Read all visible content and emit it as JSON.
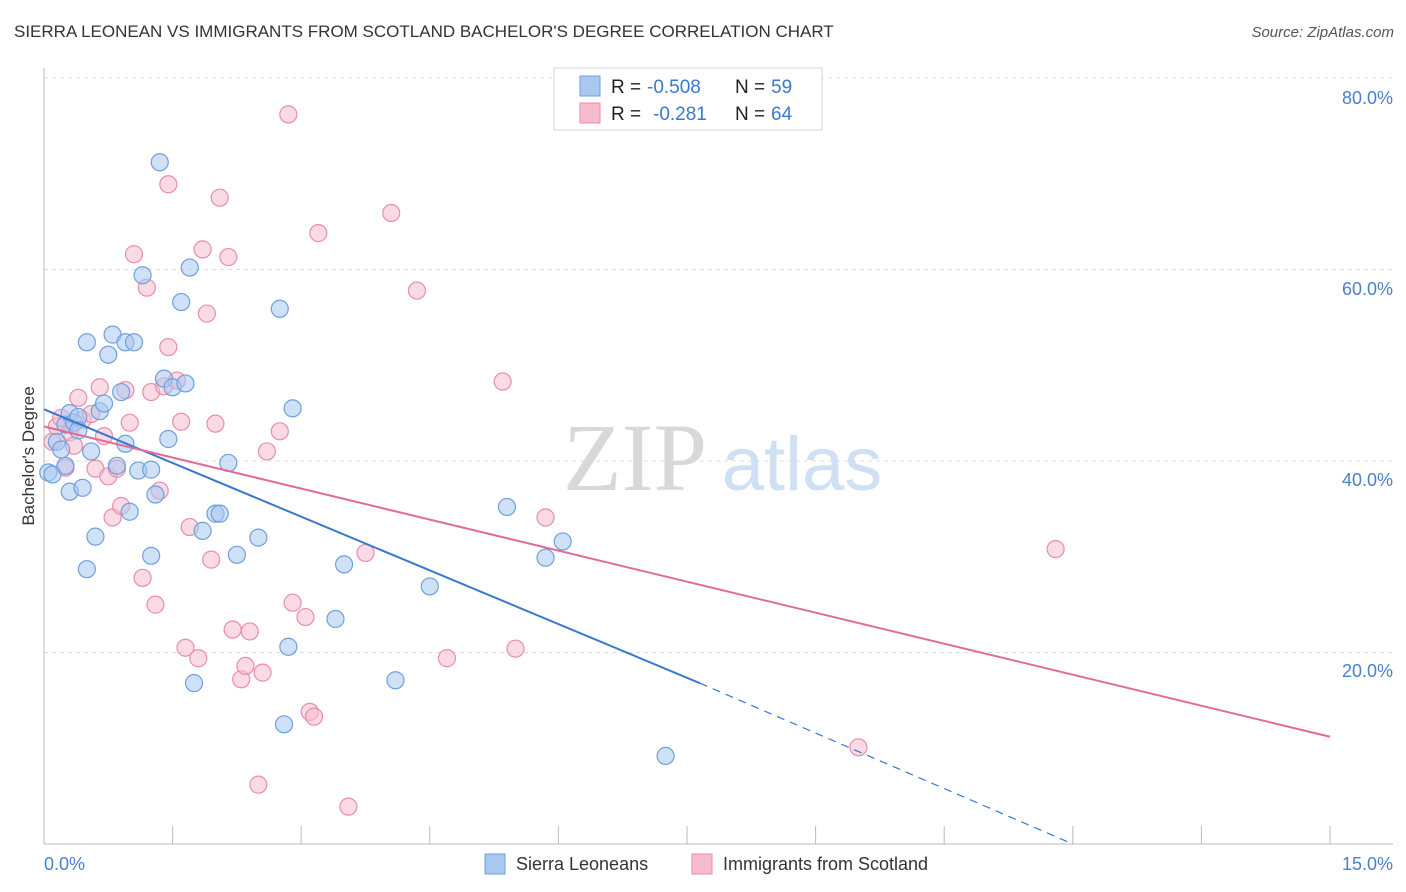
{
  "title": "SIERRA LEONEAN VS IMMIGRANTS FROM SCOTLAND BACHELOR'S DEGREE CORRELATION CHART",
  "source": "Source: ZipAtlas.com",
  "watermark": {
    "zip": "ZIP",
    "atlas": "atlas"
  },
  "colors": {
    "blue_fill": "#a8c8f0",
    "blue_stroke": "#6f9fdc",
    "blue_line": "#3a78d0",
    "pink_fill": "#f6bccd",
    "pink_stroke": "#e98dab",
    "pink_line": "#e06c98",
    "tick_text": "#4a80cc",
    "grid": "#dddddd"
  },
  "stats": [
    {
      "r_label": "R =",
      "r_value": "-0.508",
      "n_label": "N =",
      "n_value": "59"
    },
    {
      "r_label": "R =",
      "r_value": "-0.281",
      "n_label": "N =",
      "n_value": "64"
    }
  ],
  "chart_data": {
    "type": "scatter",
    "title": "SIERRA LEONEAN VS IMMIGRANTS FROM SCOTLAND BACHELOR'S DEGREE CORRELATION CHART",
    "xlabel": "",
    "ylabel": "Bachelor's Degree",
    "xlim": [
      0,
      15
    ],
    "ylim": [
      0,
      80
    ],
    "x_tick_labels": [
      "0.0%",
      "15.0%"
    ],
    "y_ticks": [
      20,
      40,
      60,
      80
    ],
    "y_tick_labels": [
      "20.0%",
      "40.0%",
      "60.0%",
      "80.0%"
    ],
    "grid": true,
    "legend_position": "bottom-center",
    "series": [
      {
        "name": "Sierra Leoneans",
        "color": "#a8c8f0",
        "r": -0.508,
        "n": 59,
        "trend": {
          "x": [
            0,
            7.65
          ],
          "y": [
            45.4,
            16.8
          ],
          "dashed_to": [
            12.0,
            0.0
          ]
        },
        "points": [
          [
            0.05,
            38.8
          ],
          [
            0.1,
            38.6
          ],
          [
            0.15,
            42.0
          ],
          [
            0.2,
            41.2
          ],
          [
            0.25,
            43.8
          ],
          [
            0.25,
            39.5
          ],
          [
            0.3,
            36.8
          ],
          [
            0.3,
            45.0
          ],
          [
            0.35,
            44.0
          ],
          [
            0.4,
            44.6
          ],
          [
            0.4,
            43.2
          ],
          [
            0.45,
            37.2
          ],
          [
            0.5,
            28.7
          ],
          [
            0.5,
            52.4
          ],
          [
            0.55,
            41.0
          ],
          [
            0.6,
            32.1
          ],
          [
            0.65,
            45.2
          ],
          [
            0.7,
            46.0
          ],
          [
            0.75,
            51.1
          ],
          [
            0.8,
            53.2
          ],
          [
            0.85,
            39.5
          ],
          [
            0.9,
            47.2
          ],
          [
            0.95,
            52.4
          ],
          [
            0.95,
            41.8
          ],
          [
            1.0,
            34.7
          ],
          [
            1.05,
            52.4
          ],
          [
            1.1,
            39.0
          ],
          [
            1.15,
            59.4
          ],
          [
            1.25,
            30.1
          ],
          [
            1.25,
            39.1
          ],
          [
            1.3,
            36.5
          ],
          [
            1.35,
            71.2
          ],
          [
            1.4,
            48.6
          ],
          [
            1.45,
            42.3
          ],
          [
            1.5,
            47.7
          ],
          [
            1.6,
            56.6
          ],
          [
            1.65,
            48.1
          ],
          [
            1.7,
            60.2
          ],
          [
            1.75,
            16.8
          ],
          [
            1.85,
            32.7
          ],
          [
            2.0,
            34.5
          ],
          [
            2.05,
            34.5
          ],
          [
            2.15,
            39.8
          ],
          [
            2.25,
            30.2
          ],
          [
            2.5,
            32.0
          ],
          [
            2.75,
            55.9
          ],
          [
            2.8,
            12.5
          ],
          [
            2.85,
            20.6
          ],
          [
            2.9,
            45.5
          ],
          [
            3.4,
            23.5
          ],
          [
            3.5,
            29.2
          ],
          [
            4.1,
            17.1
          ],
          [
            4.5,
            26.9
          ],
          [
            5.4,
            35.2
          ],
          [
            5.85,
            29.9
          ],
          [
            6.05,
            31.6
          ],
          [
            7.25,
            9.2
          ]
        ]
      },
      {
        "name": "Immigrants from Scotland",
        "color": "#f6bccd",
        "r": -0.281,
        "n": 64,
        "trend": {
          "x": [
            0,
            15.0
          ],
          "y": [
            43.6,
            11.2
          ]
        },
        "points": [
          [
            0.1,
            42.0
          ],
          [
            0.15,
            43.6
          ],
          [
            0.2,
            44.5
          ],
          [
            0.25,
            39.3
          ],
          [
            0.3,
            43.0
          ],
          [
            0.35,
            41.6
          ],
          [
            0.4,
            46.6
          ],
          [
            0.45,
            44.3
          ],
          [
            0.55,
            44.9
          ],
          [
            0.6,
            39.2
          ],
          [
            0.65,
            47.7
          ],
          [
            0.7,
            42.6
          ],
          [
            0.75,
            38.4
          ],
          [
            0.8,
            34.1
          ],
          [
            0.85,
            39.2
          ],
          [
            0.9,
            35.3
          ],
          [
            0.95,
            47.4
          ],
          [
            1.0,
            44.0
          ],
          [
            1.05,
            61.6
          ],
          [
            1.15,
            27.8
          ],
          [
            1.2,
            58.1
          ],
          [
            1.25,
            47.2
          ],
          [
            1.3,
            25.0
          ],
          [
            1.35,
            36.9
          ],
          [
            1.4,
            47.8
          ],
          [
            1.45,
            68.9
          ],
          [
            1.45,
            51.9
          ],
          [
            1.55,
            48.4
          ],
          [
            1.6,
            44.1
          ],
          [
            1.65,
            20.5
          ],
          [
            1.7,
            33.1
          ],
          [
            1.8,
            19.4
          ],
          [
            1.85,
            62.1
          ],
          [
            1.9,
            55.4
          ],
          [
            1.95,
            29.7
          ],
          [
            2.0,
            43.9
          ],
          [
            2.05,
            67.5
          ],
          [
            2.15,
            61.3
          ],
          [
            2.2,
            22.4
          ],
          [
            2.3,
            17.2
          ],
          [
            2.35,
            18.6
          ],
          [
            2.4,
            22.2
          ],
          [
            2.5,
            6.2
          ],
          [
            2.55,
            17.9
          ],
          [
            2.6,
            41.0
          ],
          [
            2.75,
            43.1
          ],
          [
            2.85,
            76.2
          ],
          [
            2.9,
            25.2
          ],
          [
            3.05,
            23.7
          ],
          [
            3.1,
            13.8
          ],
          [
            3.15,
            13.3
          ],
          [
            3.2,
            63.8
          ],
          [
            3.55,
            3.9
          ],
          [
            3.75,
            30.4
          ],
          [
            4.05,
            65.9
          ],
          [
            4.35,
            57.8
          ],
          [
            4.7,
            19.4
          ],
          [
            5.35,
            48.3
          ],
          [
            5.5,
            20.4
          ],
          [
            5.85,
            34.1
          ],
          [
            11.8,
            30.8
          ],
          [
            9.5,
            10.1
          ]
        ]
      }
    ]
  }
}
